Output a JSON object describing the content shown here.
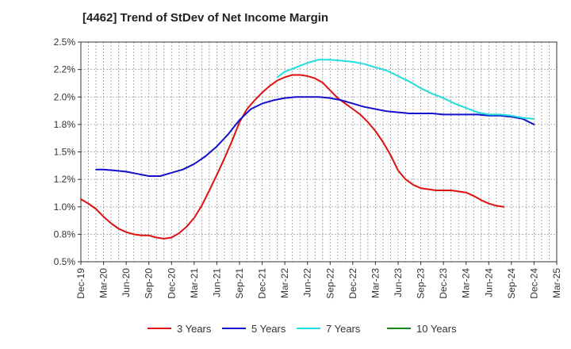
{
  "chart_data": {
    "type": "line",
    "title": "[4462]  Trend of StDev of Net Income Margin",
    "xlabel": "",
    "ylabel": "",
    "x_ticks": [
      "Dec-19",
      "Mar-20",
      "Jun-20",
      "Sep-20",
      "Dec-20",
      "Mar-21",
      "Jun-21",
      "Sep-21",
      "Dec-21",
      "Mar-22",
      "Jun-22",
      "Sep-22",
      "Dec-22",
      "Mar-23",
      "Jun-23",
      "Sep-23",
      "Dec-23",
      "Mar-24",
      "Jun-24",
      "Sep-24",
      "Dec-24",
      "Mar-25"
    ],
    "y_ticks": [
      "0.5%",
      "0.8%",
      "1.0%",
      "1.2%",
      "1.5%",
      "1.8%",
      "2.0%",
      "2.2%",
      "2.5%"
    ],
    "ylim": [
      0.5,
      2.5
    ],
    "grid": true,
    "legend_position": "bottom",
    "series": [
      {
        "name": "3 Years",
        "color": "#dd1111",
        "x": [
          0,
          0.33,
          0.67,
          1,
          1.33,
          1.67,
          2,
          2.33,
          2.67,
          3,
          3.33,
          3.67,
          4,
          4.33,
          4.67,
          5,
          5.33,
          5.67,
          6,
          6.33,
          6.67,
          7,
          7.33,
          7.67,
          8,
          8.33,
          8.67,
          9,
          9.33,
          9.67,
          10,
          10.33,
          10.67,
          11,
          11.33,
          11.67,
          12,
          12.33,
          12.67,
          13,
          13.33,
          13.67,
          14,
          14.33,
          14.67,
          15,
          15.33,
          15.67,
          16,
          16.33,
          16.67,
          17,
          17.33,
          17.67,
          18,
          18.33,
          18.67,
          19,
          19.33,
          19.67,
          20
        ],
        "y": [
          1.07,
          1.03,
          0.98,
          0.91,
          0.85,
          0.8,
          0.77,
          0.75,
          0.74,
          0.74,
          0.72,
          0.71,
          0.72,
          0.76,
          0.82,
          0.9,
          1.01,
          1.15,
          1.29,
          1.44,
          1.6,
          1.77,
          1.89,
          1.97,
          2.04,
          2.1,
          2.15,
          2.18,
          2.2,
          2.2,
          2.19,
          2.17,
          2.13,
          2.06,
          1.99,
          1.94,
          1.89,
          1.84,
          1.77,
          1.69,
          1.59,
          1.47,
          1.33,
          1.25,
          1.2,
          1.17,
          1.16,
          1.15,
          1.15,
          1.15,
          1.14,
          1.13,
          1.1,
          1.06,
          1.03,
          1.01,
          1.0,
          null,
          null,
          null,
          null
        ]
      },
      {
        "name": "5 Years",
        "color": "#1111cc",
        "x": [
          0.67,
          1,
          1.5,
          2,
          2.5,
          3,
          3.5,
          4,
          4.5,
          5,
          5.5,
          6,
          6.5,
          7,
          7.5,
          8,
          8.5,
          9,
          9.5,
          10,
          10.5,
          11,
          11.5,
          12,
          12.5,
          13,
          13.5,
          14,
          14.5,
          15,
          15.5,
          16,
          16.5,
          17,
          17.5,
          18,
          18.5,
          19,
          19.5,
          20
        ],
        "y": [
          1.34,
          1.34,
          1.33,
          1.32,
          1.3,
          1.28,
          1.28,
          1.31,
          1.34,
          1.39,
          1.46,
          1.55,
          1.66,
          1.79,
          1.89,
          1.94,
          1.97,
          1.99,
          2.0,
          2.0,
          2.0,
          1.99,
          1.97,
          1.94,
          1.91,
          1.89,
          1.87,
          1.86,
          1.85,
          1.85,
          1.85,
          1.84,
          1.84,
          1.84,
          1.84,
          1.83,
          1.83,
          1.82,
          1.8,
          1.75
        ]
      },
      {
        "name": "7 Years",
        "color": "#22dddd",
        "x": [
          8.67,
          9,
          9.5,
          10,
          10.5,
          11,
          11.5,
          12,
          12.5,
          13,
          13.5,
          14,
          14.5,
          15,
          15.5,
          16,
          16.5,
          17,
          17.5,
          18,
          18.5,
          19,
          19.5,
          20
        ],
        "y": [
          2.18,
          2.23,
          2.27,
          2.31,
          2.34,
          2.34,
          2.33,
          2.32,
          2.3,
          2.27,
          2.24,
          2.19,
          2.14,
          2.08,
          2.03,
          1.99,
          1.94,
          1.9,
          1.86,
          1.84,
          1.84,
          1.83,
          1.81,
          1.8
        ]
      },
      {
        "name": "10 Years",
        "color": "#118811",
        "x": [],
        "y": []
      }
    ]
  }
}
